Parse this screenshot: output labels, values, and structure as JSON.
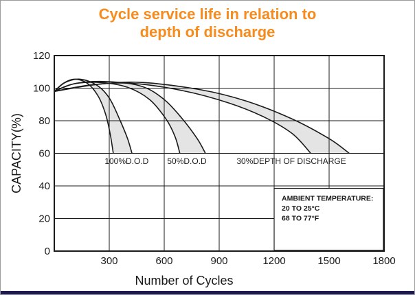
{
  "title": {
    "line1": "Cycle service life in relation to",
    "line2": "depth of discharge",
    "color": "#f68b1e"
  },
  "footer": {
    "bar_color": "#1d1b4f"
  },
  "chart_data": {
    "type": "area",
    "title": "Cycle service life in relation to depth of discharge",
    "xlabel": "Number of Cycles",
    "ylabel": "CAPACITY(%)",
    "xlim": [
      0,
      1800
    ],
    "ylim": [
      0,
      120
    ],
    "xticks": [
      300,
      600,
      900,
      1200,
      1500,
      1800
    ],
    "yticks": [
      0,
      20,
      40,
      60,
      80,
      100,
      120
    ],
    "grid": true,
    "legend_position": "none",
    "band_fill": "#e4e4e4",
    "line_color": "#1a1a1a",
    "bands": [
      {
        "name": "100-percent-dod",
        "label": "100%D.O.D",
        "label_at": [
          395,
          53.5
        ],
        "left": [
          [
            0,
            98
          ],
          [
            50,
            103
          ],
          [
            110,
            105.5
          ],
          [
            180,
            103
          ],
          [
            240,
            95
          ],
          [
            280,
            84
          ],
          [
            305,
            72
          ],
          [
            322,
            60
          ]
        ],
        "right": [
          [
            0,
            98
          ],
          [
            60,
            103.5
          ],
          [
            140,
            105.5
          ],
          [
            230,
            102
          ],
          [
            300,
            94
          ],
          [
            360,
            80
          ],
          [
            400,
            69
          ],
          [
            424,
            60
          ]
        ]
      },
      {
        "name": "50-percent-dod",
        "label": "50%D.O.D",
        "label_at": [
          724,
          53.5
        ],
        "left": [
          [
            0,
            98
          ],
          [
            100,
            102.5
          ],
          [
            250,
            103.5
          ],
          [
            400,
            100.5
          ],
          [
            520,
            93
          ],
          [
            610,
            81
          ],
          [
            660,
            70
          ],
          [
            685,
            60
          ]
        ],
        "right": [
          [
            0,
            98
          ],
          [
            120,
            103
          ],
          [
            300,
            104
          ],
          [
            480,
            101
          ],
          [
            600,
            93
          ],
          [
            700,
            81
          ],
          [
            780,
            69
          ],
          [
            825,
            60
          ]
        ]
      },
      {
        "name": "30-percent-dod",
        "label": "30%DEPTH OF DISCHARGE",
        "label_at": [
          1294,
          53.5
        ],
        "left": [
          [
            0,
            98
          ],
          [
            200,
            102
          ],
          [
            420,
            103
          ],
          [
            700,
            98.5
          ],
          [
            950,
            91
          ],
          [
            1150,
            82
          ],
          [
            1300,
            72
          ],
          [
            1400,
            60
          ]
        ],
        "right": [
          [
            0,
            98
          ],
          [
            250,
            102.5
          ],
          [
            480,
            103.5
          ],
          [
            800,
            99
          ],
          [
            1050,
            92
          ],
          [
            1300,
            81
          ],
          [
            1500,
            69
          ],
          [
            1610,
            60
          ]
        ]
      }
    ],
    "annotation": {
      "lines": [
        "AMBIENT TEMPERATURE:",
        "20 TO 25°C",
        "68 TO 77°F"
      ],
      "box_x": [
        1200,
        1796
      ],
      "box_y": [
        0.5,
        38.5
      ]
    }
  }
}
